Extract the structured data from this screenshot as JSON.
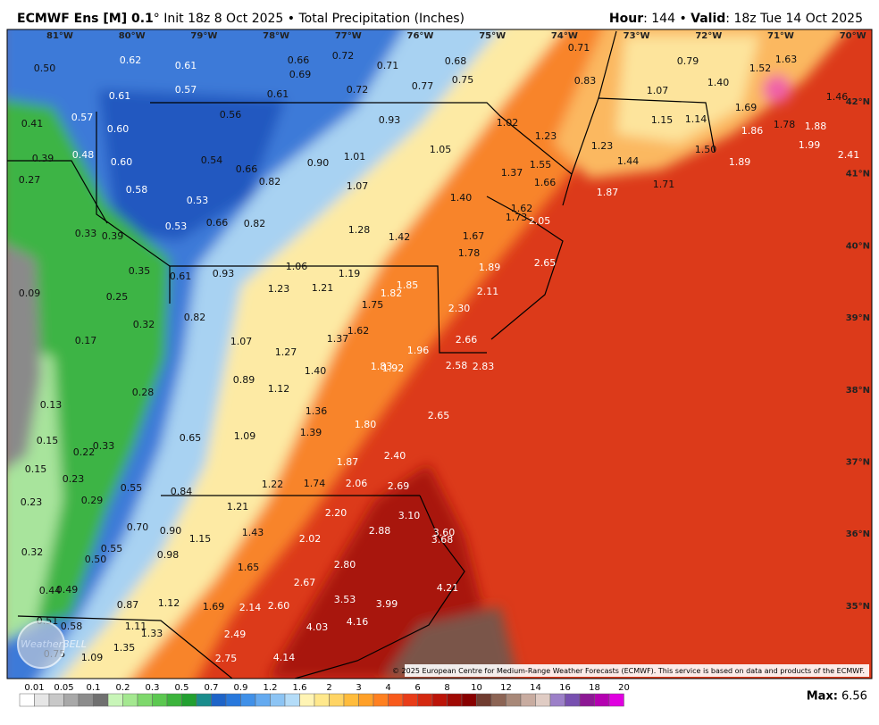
{
  "header": {
    "title_bold": "ECMWF Ens [M] 0.1",
    "title_rest": "° Init 18z 8 Oct 2025 • Total Precipitation (Inches)",
    "hour_label": "Hour",
    "hour_text": ": 144 • ",
    "valid_label": "Valid",
    "valid_text": ": 18z Tue 14 Oct 2025"
  },
  "map": {
    "longitudes": [
      "81°W",
      "80°W",
      "79°W",
      "78°W",
      "77°W",
      "76°W",
      "75°W",
      "74°W",
      "73°W",
      "72°W",
      "71°W",
      "70°W"
    ],
    "latitudes": [
      "42°N",
      "41°N",
      "40°N",
      "39°N",
      "38°N",
      "37°N",
      "36°N",
      "35°N"
    ],
    "point_values": [
      "0.50",
      "0.62",
      "0.61",
      "0.66",
      "0.72",
      "0.69",
      "0.71",
      "0.68",
      "0.71",
      "0.79",
      "1.52",
      "1.63",
      "0.57",
      "0.61",
      "0.61",
      "0.72",
      "0.77",
      "0.75",
      "0.83",
      "1.07",
      "1.40",
      "1.46",
      "0.57",
      "0.41",
      "0.60",
      "0.56",
      "0.93",
      "1.02",
      "1.15",
      "1.14",
      "1.69",
      "1.78",
      "1.88",
      "1.86",
      "0.39",
      "0.48",
      "0.60",
      "0.54",
      "0.66",
      "0.90",
      "1.01",
      "1.05",
      "1.23",
      "1.23",
      "1.55",
      "1.44",
      "1.50",
      "1.99",
      "1.89",
      "2.41",
      "0.27",
      "0.58",
      "0.82",
      "1.07",
      "1.37",
      "1.66",
      "1.71",
      "1.87",
      "0.53",
      "1.40",
      "1.62",
      "0.33",
      "0.39",
      "0.53",
      "0.66",
      "0.82",
      "1.28",
      "1.73",
      "2.05",
      "1.42",
      "1.67",
      "1.78",
      "2.65",
      "1.89",
      "0.35",
      "0.61",
      "0.93",
      "1.06",
      "1.19",
      "0.09",
      "0.25",
      "1.23",
      "1.21",
      "1.82",
      "1.85",
      "2.11",
      "1.75",
      "2.30",
      "0.82",
      "0.32",
      "1.62",
      "1.37",
      "0.17",
      "1.07",
      "2.66",
      "1.27",
      "1.96",
      "1.40",
      "1.83",
      "1.92",
      "2.58",
      "2.83",
      "0.89",
      "1.12",
      "0.28",
      "0.13",
      "1.36",
      "2.65",
      "1.80",
      "1.39",
      "1.09",
      "0.65",
      "0.15",
      "0.33",
      "0.22",
      "2.40",
      "0.15",
      "1.87",
      "0.23",
      "0.55",
      "0.84",
      "1.22",
      "1.74",
      "2.06",
      "2.69",
      "0.23",
      "0.29",
      "1.21",
      "2.20",
      "3.10",
      "0.70",
      "0.90",
      "1.43",
      "2.88",
      "3.60",
      "3.68",
      "1.15",
      "2.02",
      "0.32",
      "0.55",
      "0.50",
      "0.98",
      "1.65",
      "2.80",
      "0.44",
      "0.49",
      "2.67",
      "4.21",
      "0.87",
      "1.12",
      "1.69",
      "2.14",
      "2.60",
      "3.53",
      "3.99",
      "0.51",
      "0.58",
      "1.11",
      "1.33",
      "4.16",
      "4.03",
      "2.49",
      "1.35",
      "0.75",
      "1.09",
      "2.75",
      "4.14"
    ],
    "copyright": "© 2025 European Centre for Medium-Range Weather Forecasts (ECMWF). This service is based on data and products of the ECMWF.",
    "watermark": "WeatherBELL"
  },
  "legend": {
    "labels": [
      "0.01",
      "0.05",
      "0.1",
      "0.2",
      "0.3",
      "0.5",
      "0.7",
      "0.9",
      "1.2",
      "1.6",
      "2",
      "3",
      "4",
      "6",
      "8",
      "10",
      "12",
      "14",
      "16",
      "18",
      "20"
    ],
    "colors": [
      "#ffffff",
      "#e6e6e6",
      "#c8c8c8",
      "#a8a8a8",
      "#8c8c8c",
      "#707070",
      "#c8f5b8",
      "#a4e890",
      "#7ed86c",
      "#5cc850",
      "#3cb43c",
      "#22a030",
      "#1a8c8c",
      "#1e64c8",
      "#2878dc",
      "#4090e8",
      "#64aaf0",
      "#8cc4f4",
      "#b4dcf8",
      "#fff4b4",
      "#ffe88c",
      "#ffd464",
      "#ffbc3c",
      "#ffa028",
      "#ff8020",
      "#f85a1c",
      "#e83c18",
      "#d42810",
      "#bc1408",
      "#a00a04",
      "#880000",
      "#703c30",
      "#8c6454",
      "#a88878",
      "#c8aca0",
      "#e0ccc4",
      "#9c80c8",
      "#7850b0",
      "#8c1894",
      "#b400b0",
      "#e000e0"
    ],
    "max_label": "Max:",
    "max_value": "6.56"
  }
}
